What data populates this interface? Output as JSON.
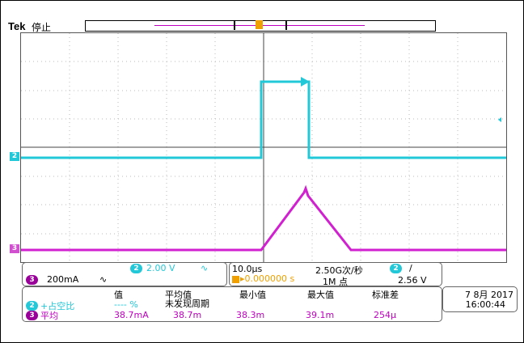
{
  "header": {
    "brand": "Tek",
    "state": "停止"
  },
  "channels": {
    "ch2": {
      "number": "2",
      "scale": "2.00 V",
      "coupling": "∿",
      "color": "#22c8d8"
    },
    "ch3": {
      "number": "3",
      "scale": "200mA",
      "coupling": "∿",
      "color": "#c000c0"
    }
  },
  "timebase": {
    "scale": "10.0μs",
    "delay": "▸0.000000 s",
    "sample_rate": "2.50G次/秒",
    "record_length": "1M 点"
  },
  "trigger": {
    "source": "2",
    "slope": "/",
    "level": "2.56 V",
    "marker": "T"
  },
  "measurements": {
    "headers": [
      "值",
      "平均值",
      "最小值",
      "最大值",
      "标准差"
    ],
    "rows": [
      {
        "channel": "2",
        "name": "+占空比",
        "value": "---- %",
        "mean": "未发现周期",
        "min": "",
        "max": "",
        "std": ""
      },
      {
        "channel": "3",
        "name": "平均",
        "value": "38.7mA",
        "mean": "38.7m",
        "min": "38.3m",
        "max": "39.1m",
        "std": "254μ"
      }
    ]
  },
  "datetime": {
    "date": "7 8月 2017",
    "time": "16:00:44"
  }
}
